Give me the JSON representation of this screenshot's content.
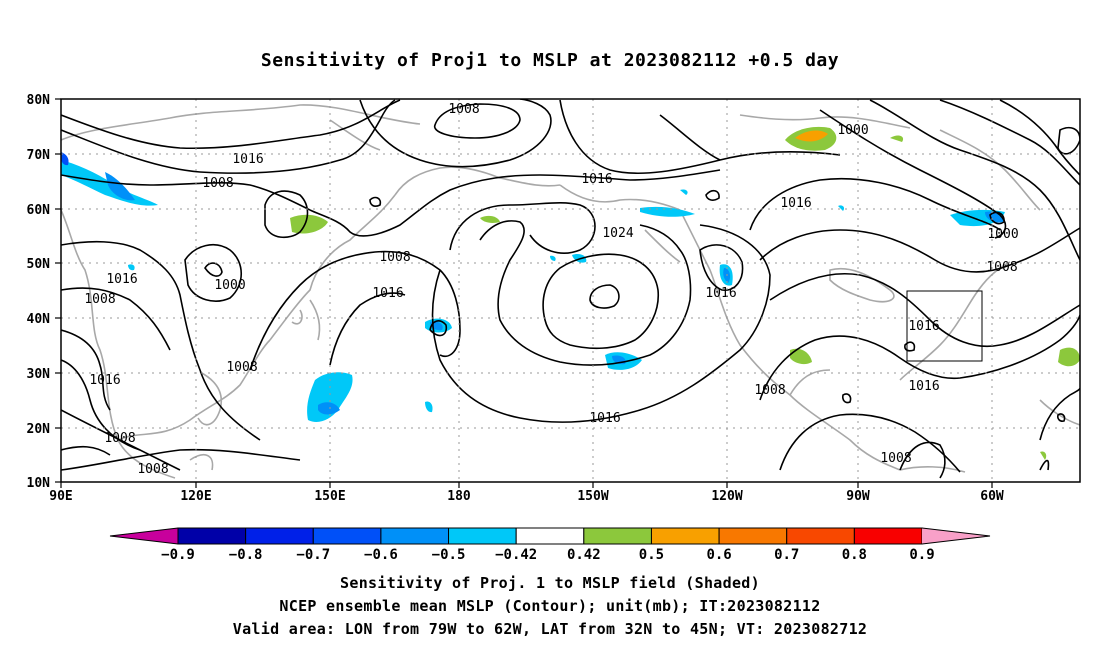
{
  "title": "Sensitivity of Proj1 to MSLP at 2023082112 +0.5 day",
  "lat_labels": [
    "80N",
    "70N",
    "60N",
    "50N",
    "40N",
    "30N",
    "20N",
    "10N"
  ],
  "lon_labels": [
    "90E",
    "120E",
    "150E",
    "180",
    "150W",
    "120W",
    "90W",
    "60W"
  ],
  "contour_labels": [
    {
      "text": "1008",
      "id": "c1"
    },
    {
      "text": "1016",
      "id": "c2"
    },
    {
      "text": "1008",
      "id": "c3"
    },
    {
      "text": "1016",
      "id": "c4"
    },
    {
      "text": "1000",
      "id": "c5"
    },
    {
      "text": "1008",
      "id": "c6"
    },
    {
      "text": "1008",
      "id": "c7"
    },
    {
      "text": "1016",
      "id": "c8"
    },
    {
      "text": "1016",
      "id": "c9"
    },
    {
      "text": "1024",
      "id": "c10"
    },
    {
      "text": "1008",
      "id": "c11"
    },
    {
      "text": "1016",
      "id": "c12"
    },
    {
      "text": "1016",
      "id": "c13"
    },
    {
      "text": "1008",
      "id": "c14"
    },
    {
      "text": "1008",
      "id": "c15"
    },
    {
      "text": "1016",
      "id": "c16"
    },
    {
      "text": "1000",
      "id": "c17"
    },
    {
      "text": "1016",
      "id": "c18"
    },
    {
      "text": "1000",
      "id": "c19"
    },
    {
      "text": "1008",
      "id": "c20"
    },
    {
      "text": "1016",
      "id": "c21"
    },
    {
      "text": "1016",
      "id": "c22"
    },
    {
      "text": "1008",
      "id": "c23"
    },
    {
      "text": "1008",
      "id": "c24"
    }
  ],
  "colorbar": {
    "labels": [
      "-0.9",
      "-0.8",
      "-0.7",
      "-0.6",
      "-0.5",
      "-0.42",
      "0.42",
      "0.5",
      "0.6",
      "0.7",
      "0.8",
      "0.9"
    ],
    "colors": [
      "#0000a8",
      "#0020e8",
      "#0050f8",
      "#0090f8",
      "#00c8f8",
      "#ffffff",
      "#8cc83c",
      "#f8a000",
      "#f87800",
      "#f84800",
      "#f80000"
    ],
    "left_arrow_color": "#c8009c",
    "right_arrow_color": "#f8a0c8"
  },
  "captions": [
    "Sensitivity of Proj. 1 to MSLP field (Shaded)",
    "NCEP ensemble mean MSLP (Contour); unit(mb); IT:2023082112",
    "Valid area: LON from 79W to 62W, LAT from 32N to 45N; VT: 2023082712"
  ]
}
